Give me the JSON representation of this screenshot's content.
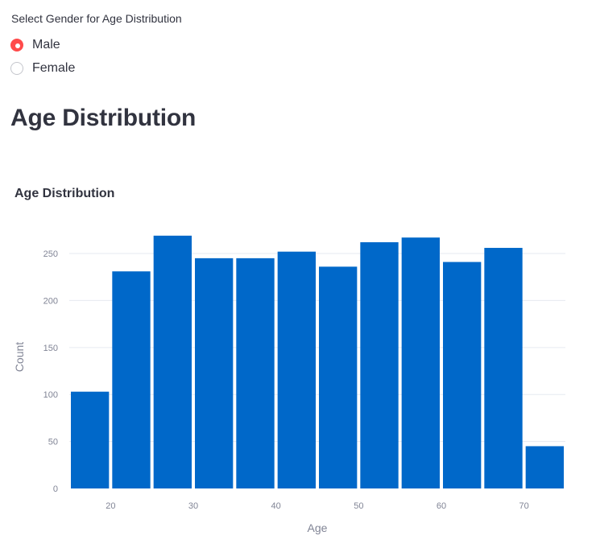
{
  "controls": {
    "gender_radio": {
      "label": "Select Gender for Age Distribution",
      "options": [
        "Male",
        "Female"
      ],
      "selected": "Male"
    }
  },
  "page": {
    "heading": "Age Distribution"
  },
  "colors": {
    "accent": "#ff4b4b",
    "bar": "#0068c9",
    "grid": "#e6eaf1"
  },
  "chart_data": {
    "type": "bar",
    "title": "Age Distribution",
    "xlabel": "Age",
    "ylabel": "Count",
    "bins": [
      {
        "x0": 15,
        "x1": 20,
        "count": 103
      },
      {
        "x0": 20,
        "x1": 25,
        "count": 231
      },
      {
        "x0": 25,
        "x1": 30,
        "count": 269
      },
      {
        "x0": 30,
        "x1": 35,
        "count": 245
      },
      {
        "x0": 35,
        "x1": 40,
        "count": 245
      },
      {
        "x0": 40,
        "x1": 45,
        "count": 252
      },
      {
        "x0": 45,
        "x1": 50,
        "count": 236
      },
      {
        "x0": 50,
        "x1": 55,
        "count": 262
      },
      {
        "x0": 55,
        "x1": 60,
        "count": 267
      },
      {
        "x0": 60,
        "x1": 65,
        "count": 241
      },
      {
        "x0": 65,
        "x1": 70,
        "count": 256
      },
      {
        "x0": 70,
        "x1": 75,
        "count": 45
      }
    ],
    "xlim": [
      15,
      75
    ],
    "ylim": [
      0,
      280
    ],
    "x_ticks": [
      20,
      30,
      40,
      50,
      60,
      70
    ],
    "y_ticks": [
      0,
      50,
      100,
      150,
      200,
      250
    ],
    "grid": true,
    "legend": "none"
  }
}
